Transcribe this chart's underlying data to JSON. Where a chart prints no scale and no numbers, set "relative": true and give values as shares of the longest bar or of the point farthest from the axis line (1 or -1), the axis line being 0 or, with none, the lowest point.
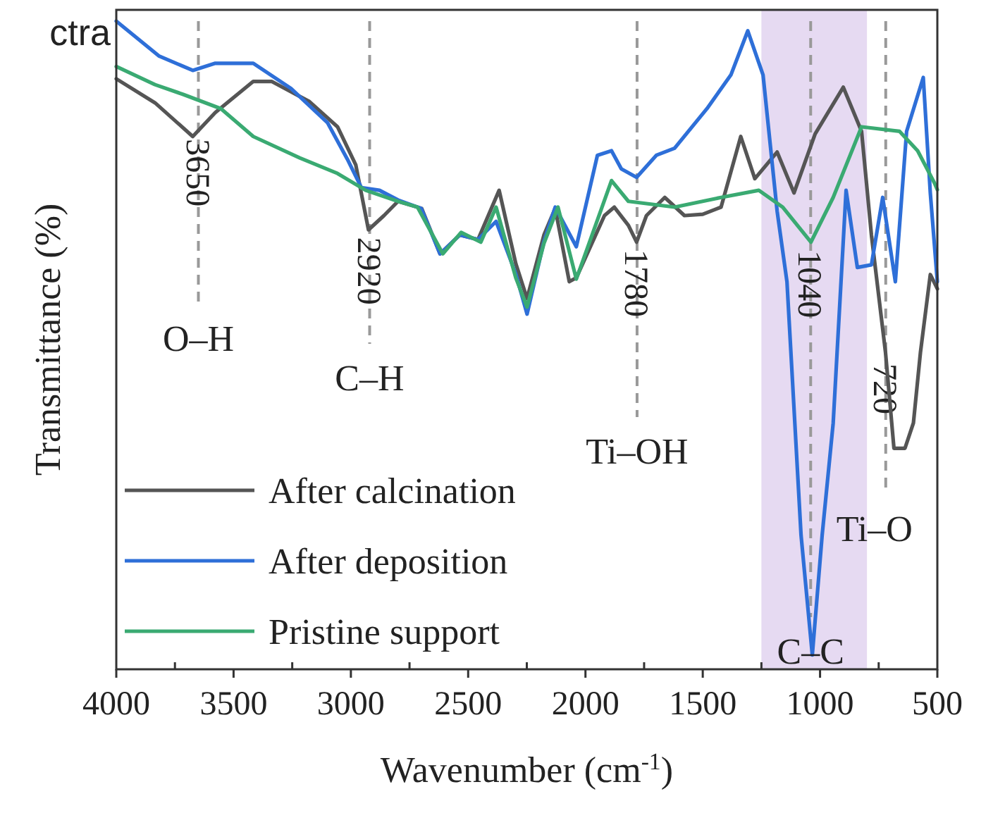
{
  "chart_data": {
    "type": "line",
    "title": "ctra",
    "xlabel": "Wavenumber (cm$^{-1}$)",
    "ylabel": "Transmittance (%)",
    "relative": true,
    "xlim": [
      4000,
      500
    ],
    "xticks": [
      4000,
      {
        "value": 3750,
        "label": null
      },
      3500,
      {
        "value": 3250,
        "label": null
      },
      3000,
      {
        "value": 2750,
        "label": null
      },
      2500,
      {
        "value": 2250,
        "label": null
      },
      2000,
      {
        "value": 1750,
        "label": null
      },
      1500,
      {
        "value": 1250,
        "label": null
      },
      1000,
      {
        "value": 750,
        "label": null
      },
      500
    ],
    "legend": "bottom left",
    "line_style": "solid",
    "series": [
      {
        "name": "After calcination",
        "color": "#555555",
        "x": [
          4000,
          3835,
          3674,
          3578,
          3416,
          3338,
          3177,
          3057,
          2979,
          2925,
          2859,
          2799,
          2698,
          2620,
          2536,
          2458,
          2368,
          2297,
          2249,
          2177,
          2129,
          2069,
          2039,
          1919,
          1877,
          1817,
          1782,
          1740,
          1662,
          1578,
          1500,
          1422,
          1338,
          1278,
          1183,
          1111,
          1021,
          901,
          823,
          781,
          721,
          685,
          638,
          602,
          572,
          530,
          500
        ],
        "values": [
          0.911,
          0.874,
          0.822,
          0.859,
          0.907,
          0.907,
          0.876,
          0.837,
          0.778,
          0.678,
          0.7,
          0.722,
          0.711,
          0.641,
          0.67,
          0.663,
          0.739,
          0.626,
          0.572,
          0.67,
          0.711,
          0.598,
          0.604,
          0.7,
          0.713,
          0.685,
          0.659,
          0.7,
          0.728,
          0.7,
          0.702,
          0.713,
          0.822,
          0.757,
          0.798,
          0.735,
          0.826,
          0.898,
          0.83,
          0.67,
          0.489,
          0.341,
          0.341,
          0.38,
          0.489,
          0.609,
          0.587
        ]
      },
      {
        "name": "After deposition",
        "color": "#2e6fd8",
        "x": [
          4000,
          3817,
          3674,
          3578,
          3416,
          3255,
          3099,
          3015,
          2955,
          2878,
          2799,
          2700,
          2620,
          2536,
          2458,
          2381,
          2297,
          2249,
          2177,
          2129,
          2039,
          1949,
          1889,
          1847,
          1782,
          1698,
          1620,
          1482,
          1380,
          1308,
          1243,
          1183,
          1141,
          1081,
          1033,
          991,
          944,
          889,
          841,
          781,
          733,
          679,
          631,
          560,
          530,
          500
        ],
        "values": [
          1,
          0.946,
          0.924,
          0.935,
          0.935,
          0.896,
          0.843,
          0.787,
          0.743,
          0.739,
          0.724,
          0.711,
          0.641,
          0.67,
          0.663,
          0.691,
          0.61,
          0.548,
          0.66,
          0.713,
          0.652,
          0.793,
          0.8,
          0.772,
          0.759,
          0.793,
          0.804,
          0.865,
          0.917,
          0.985,
          0.917,
          0.707,
          0.598,
          0.207,
          0.022,
          0.207,
          0.38,
          0.739,
          0.62,
          0.624,
          0.728,
          0.598,
          0.83,
          0.913,
          0.735,
          0.598
        ]
      },
      {
        "name": "Pristine support",
        "color": "#3aaa72",
        "x": [
          4000,
          3835,
          3715,
          3554,
          3416,
          3218,
          3057,
          2937,
          2799,
          2716,
          2608,
          2530,
          2446,
          2381,
          2297,
          2249,
          2177,
          2117,
          2039,
          1889,
          1817,
          1620,
          1422,
          1261,
          1159,
          1039,
          944,
          823,
          661,
          584,
          512,
          500
        ],
        "values": [
          0.93,
          0.902,
          0.887,
          0.865,
          0.822,
          0.789,
          0.765,
          0.739,
          0.722,
          0.713,
          0.641,
          0.674,
          0.659,
          0.713,
          0.604,
          0.559,
          0.657,
          0.713,
          0.602,
          0.754,
          0.722,
          0.713,
          0.728,
          0.739,
          0.713,
          0.659,
          0.728,
          0.837,
          0.83,
          0.8,
          0.75,
          0.74
        ]
      }
    ],
    "ref_lines": [
      {
        "axis": "x",
        "value": 3650,
        "label": "3650",
        "line_style": "dashed",
        "color": "#999999"
      },
      {
        "axis": "x",
        "value": 2920,
        "label": "2920",
        "line_style": "dashed",
        "color": "#999999"
      },
      {
        "axis": "x",
        "value": 1780,
        "label": "1780",
        "line_style": "dashed",
        "color": "#999999"
      },
      {
        "axis": "x",
        "value": 1040,
        "label": "1040",
        "line_style": "dashed",
        "color": "#999999"
      },
      {
        "axis": "x",
        "value": 720,
        "label": "720",
        "line_style": "dashed",
        "color": "#999999"
      }
    ],
    "bands": [
      {
        "axis": "x",
        "from": 1250,
        "to": 800,
        "color": "#e6daf2"
      }
    ],
    "annotations": [
      "O–H",
      "C–H",
      "Ti–OH",
      "C–C",
      "Ti–O"
    ]
  }
}
